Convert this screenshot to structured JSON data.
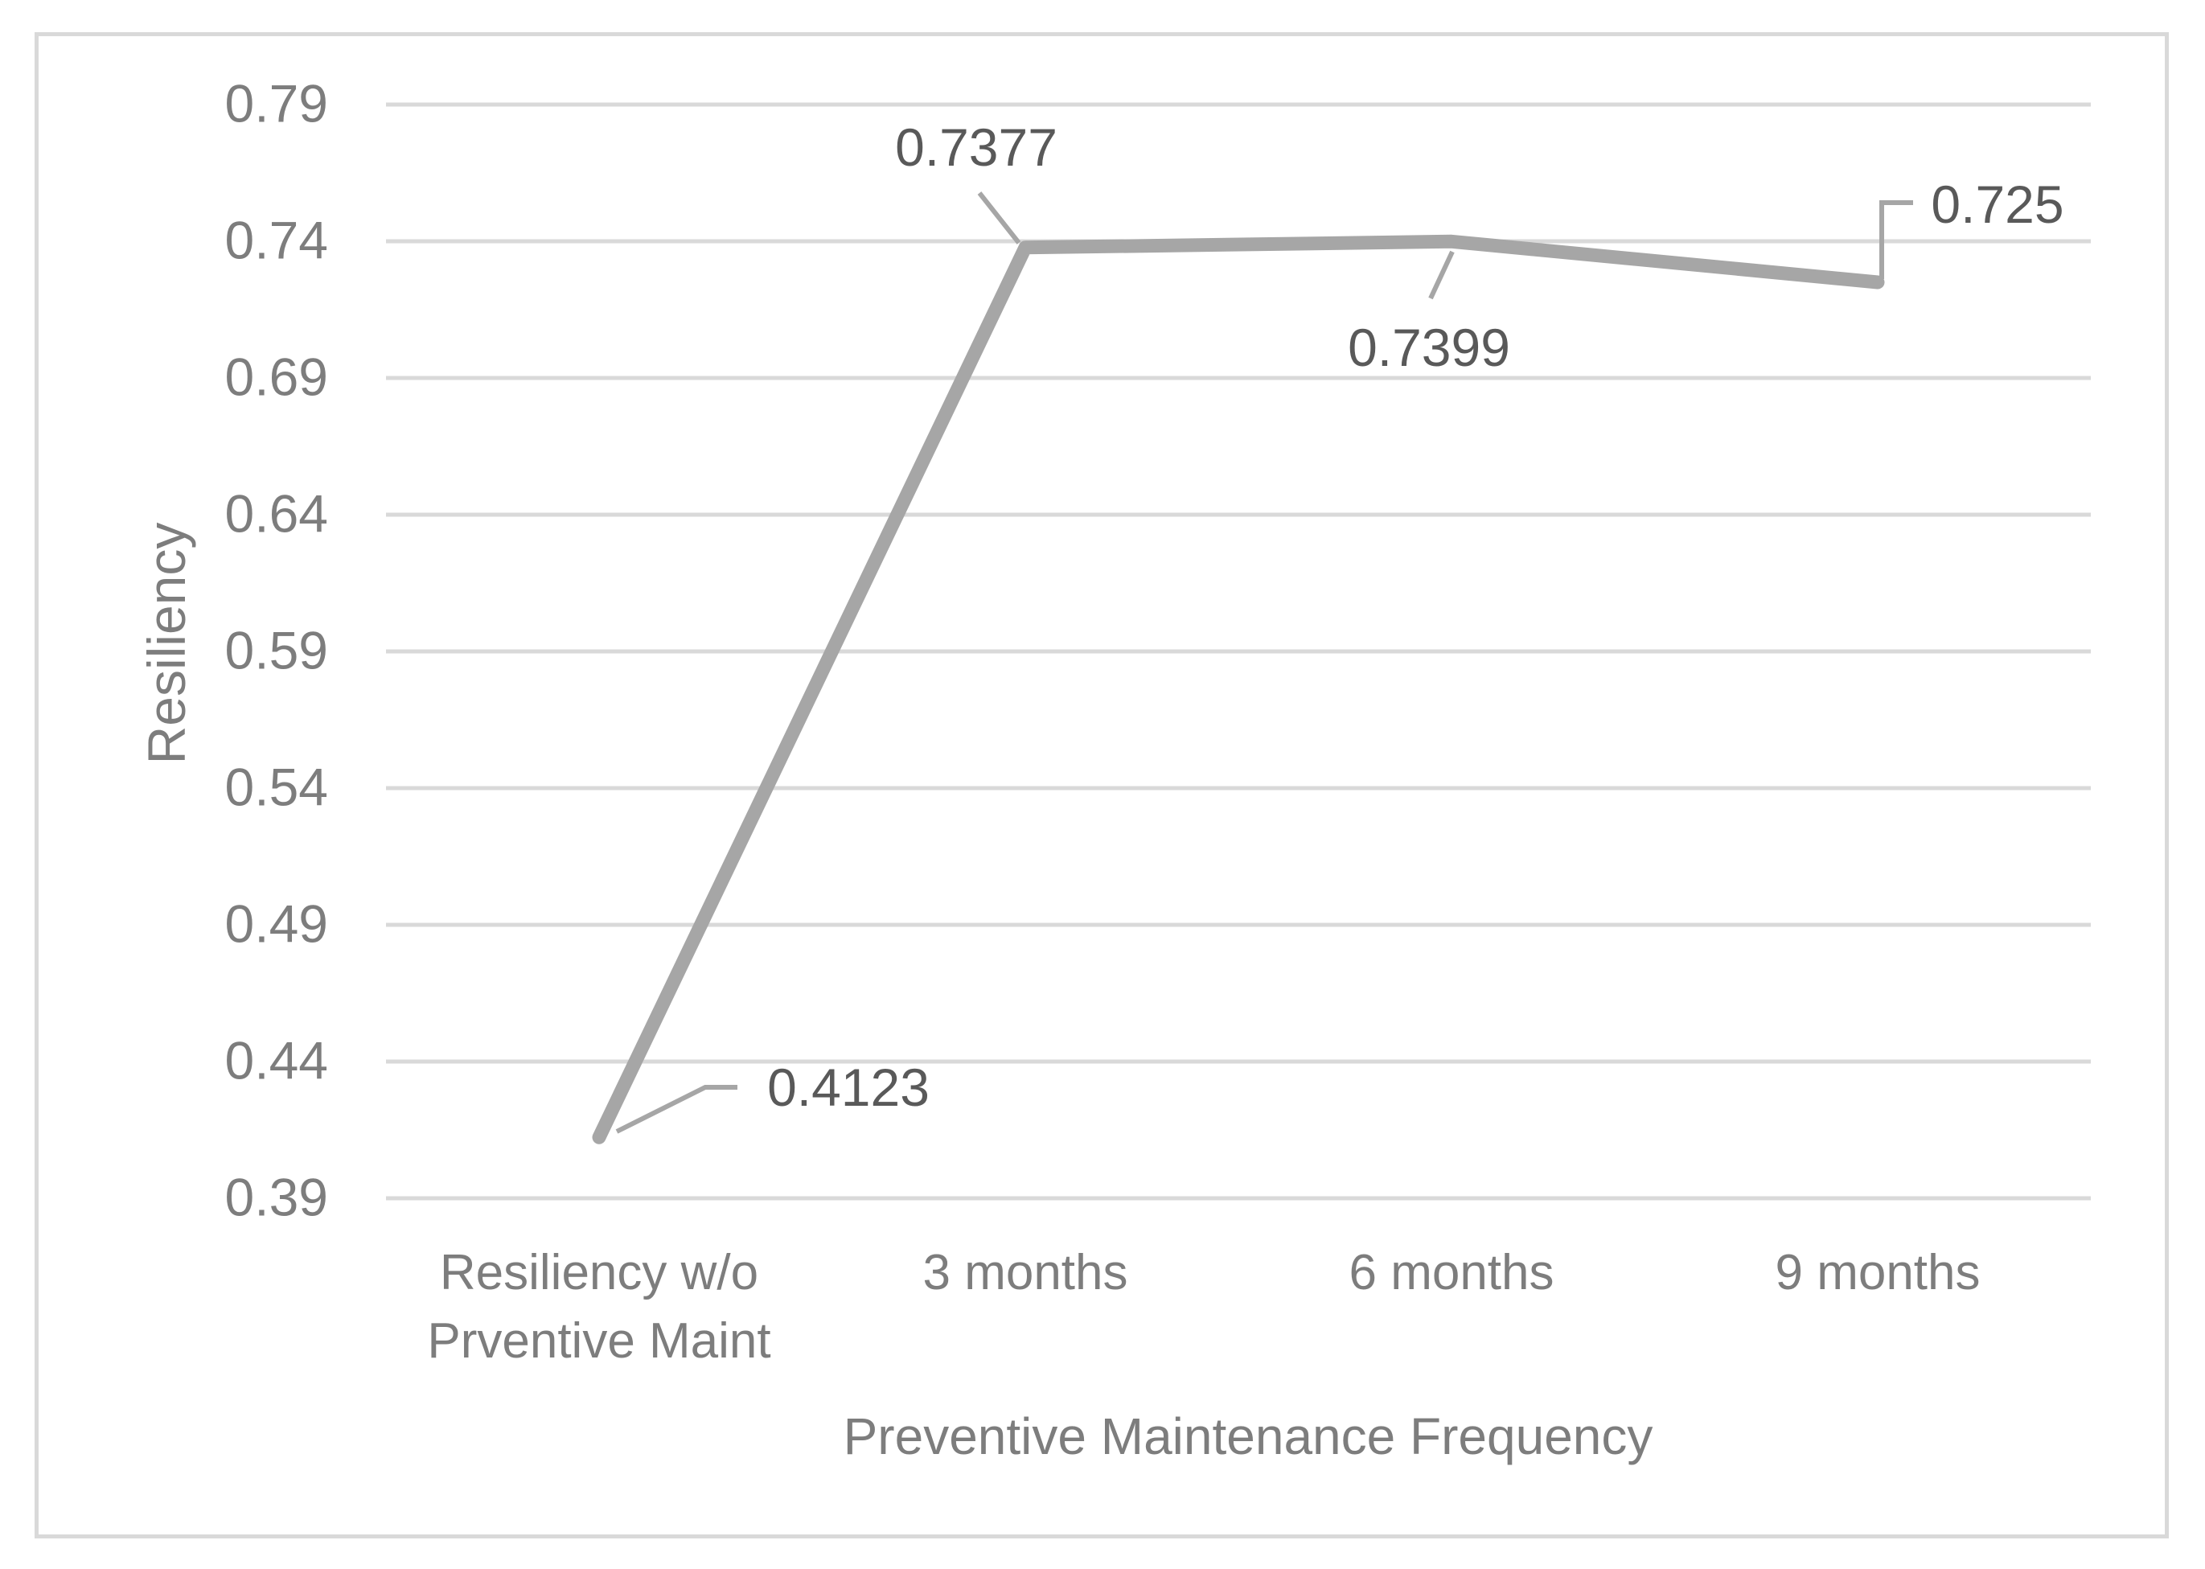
{
  "chart_data": {
    "type": "line",
    "title": "",
    "categories": [
      "Resiliency w/o Prventive Maint",
      "3 months",
      "6 months",
      "9 months"
    ],
    "values": [
      0.4123,
      0.7377,
      0.7399,
      0.725
    ],
    "xlabel": "Preventive Maintenance Frequency",
    "ylabel": "Resiliency",
    "yticks": [
      "0.79",
      "0.74",
      "0.69",
      "0.64",
      "0.59",
      "0.54",
      "0.49",
      "0.44",
      "0.39"
    ],
    "ylim": [
      0.39,
      0.79
    ],
    "ytick_step": 0.05,
    "grid": true,
    "legend": false,
    "series_name": "Resiliency",
    "colors": {
      "series": "#a6a6a6",
      "gridline": "#d9d9d9",
      "frame": "#d9d9d9",
      "axis_text": "#7d7d7d",
      "data_label": "#595959"
    }
  }
}
